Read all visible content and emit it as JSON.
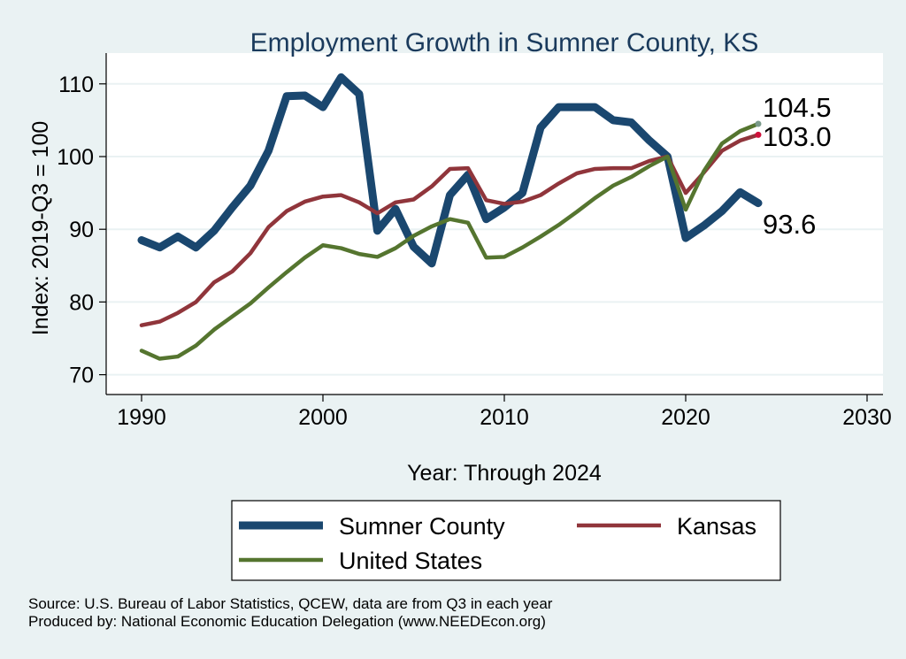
{
  "chart_data": {
    "type": "line",
    "title": "Employment Growth in Sumner County, KS",
    "xlabel": "Year: Through 2024",
    "ylabel": "Index: 2019-Q3 = 100",
    "xlim": [
      1990,
      2030
    ],
    "ylim": [
      70,
      110
    ],
    "xticks": [
      1990,
      2000,
      2010,
      2020,
      2030
    ],
    "yticks": [
      70,
      80,
      90,
      100,
      110
    ],
    "grid": true,
    "legend_position": "bottom",
    "x": [
      1990,
      1991,
      1992,
      1993,
      1994,
      1995,
      1996,
      1997,
      1998,
      1999,
      2000,
      2001,
      2002,
      2003,
      2004,
      2005,
      2006,
      2007,
      2008,
      2009,
      2010,
      2011,
      2012,
      2013,
      2014,
      2015,
      2016,
      2017,
      2018,
      2019,
      2020,
      2021,
      2022,
      2023,
      2024
    ],
    "series": [
      {
        "name": "Sumner  County",
        "color": "#1a476f",
        "width": 9,
        "end_label": "93.6",
        "end_dot": "#1a476f",
        "values": [
          88.5,
          87.5,
          89,
          87.5,
          89.8,
          93,
          96,
          100.8,
          108.3,
          108.4,
          106.8,
          110.9,
          108.6,
          89.8,
          92.8,
          87.6,
          85.3,
          94.7,
          97.5,
          91.4,
          93,
          95,
          104,
          106.8,
          106.8,
          106.8,
          105,
          104.7,
          102.2,
          100,
          88.8,
          90.5,
          92.5,
          95.1,
          93.6
        ]
      },
      {
        "name": "Kansas",
        "color": "#90353b",
        "width": 4.5,
        "end_label": "103.0",
        "end_dot": "#d0103a",
        "values": [
          76.8,
          77.3,
          78.5,
          80,
          82.7,
          84.2,
          86.7,
          90.3,
          92.5,
          93.8,
          94.5,
          94.7,
          93.7,
          92.2,
          93.7,
          94.1,
          95.9,
          98.3,
          98.4,
          94,
          93.5,
          93.8,
          94.7,
          96.3,
          97.7,
          98.3,
          98.4,
          98.4,
          99.4,
          100,
          95,
          97.8,
          100.8,
          102.2,
          103.0
        ]
      },
      {
        "name": "United States",
        "color": "#55752f",
        "width": 4.5,
        "end_label": "104.5",
        "end_dot": "#7a9a8a",
        "values": [
          73.3,
          72.2,
          72.5,
          74,
          76.2,
          78,
          79.8,
          82,
          84.1,
          86.1,
          87.8,
          87.4,
          86.6,
          86.2,
          87.4,
          89.1,
          90.4,
          91.4,
          90.9,
          86.1,
          86.2,
          87.5,
          89,
          90.6,
          92.4,
          94.3,
          96,
          97.2,
          98.7,
          100,
          92.7,
          98,
          101.8,
          103.5,
          104.5
        ]
      }
    ],
    "notes": [
      "Source: U.S. Bureau of Labor Statistics, QCEW, data are from Q3 in each year",
      "Produced by: National Economic Education Delegation (www.NEEDEcon.org)"
    ]
  }
}
